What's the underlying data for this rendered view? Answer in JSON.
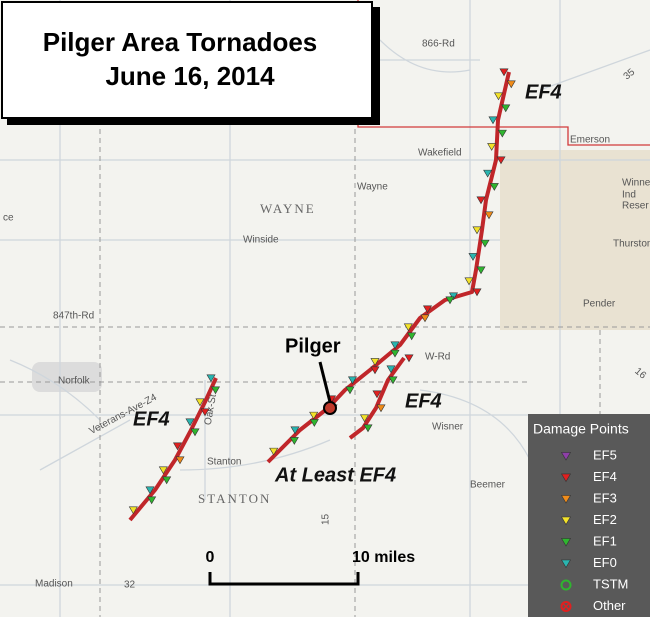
{
  "title": {
    "line1": "Pilger Area Tornadoes",
    "line2": "June 16, 2014"
  },
  "places": [
    "866-Rd",
    "Emerson",
    "Wakefield",
    "Wayne",
    "WAYNE",
    "Winside",
    "Winne",
    "Ind",
    "Reser",
    "Thurston",
    "Pender",
    "847th-Rd",
    "W-Rd",
    "Norfolk",
    "Veterans-Ave-Z4",
    "Oak-St",
    "Stanton",
    "Wisner",
    "Beemer",
    "STANTON",
    "Madison",
    "32",
    "15",
    "ce",
    "35",
    "16"
  ],
  "track_labels": [
    "EF4",
    "EF4",
    "EF4",
    "At Least EF4"
  ],
  "town_callout": "Pilger",
  "legend": {
    "title": "Damage Points",
    "items": [
      {
        "label": "EF5",
        "color": "#8e3fa8",
        "marker": "triangle"
      },
      {
        "label": "EF4",
        "color": "#e02020",
        "marker": "triangle"
      },
      {
        "label": "EF3",
        "color": "#f08c1a",
        "marker": "triangle"
      },
      {
        "label": "EF2",
        "color": "#f3e22a",
        "marker": "triangle"
      },
      {
        "label": "EF1",
        "color": "#2fb52f",
        "marker": "triangle"
      },
      {
        "label": "EF0",
        "color": "#2ab5b0",
        "marker": "triangle"
      },
      {
        "label": "TSTM",
        "color": "#2fb52f",
        "marker": "circle"
      },
      {
        "label": "Other",
        "color": "#e02020",
        "marker": "circle-x"
      }
    ]
  },
  "scale": {
    "start": "0",
    "end": "10 miles"
  }
}
